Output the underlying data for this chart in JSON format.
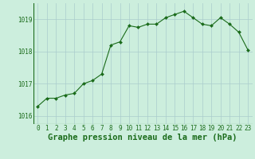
{
  "x": [
    0,
    1,
    2,
    3,
    4,
    5,
    6,
    7,
    8,
    9,
    10,
    11,
    12,
    13,
    14,
    15,
    16,
    17,
    18,
    19,
    20,
    21,
    22,
    23
  ],
  "y": [
    1016.3,
    1016.55,
    1016.55,
    1016.65,
    1016.7,
    1017.0,
    1017.1,
    1017.3,
    1018.2,
    1018.3,
    1018.8,
    1018.75,
    1018.85,
    1018.85,
    1019.05,
    1019.15,
    1019.25,
    1019.05,
    1018.85,
    1018.8,
    1019.05,
    1018.85,
    1018.6,
    1018.05
  ],
  "line_color": "#1a6b1a",
  "marker_color": "#1a6b1a",
  "bg_color": "#cceedd",
  "grid_color": "#aacccc",
  "xlabel": "Graphe pression niveau de la mer (hPa)",
  "xlabel_color": "#1a6b1a",
  "ylim": [
    1015.75,
    1019.5
  ],
  "yticks": [
    1016,
    1017,
    1018,
    1019
  ],
  "xticks": [
    0,
    1,
    2,
    3,
    4,
    5,
    6,
    7,
    8,
    9,
    10,
    11,
    12,
    13,
    14,
    15,
    16,
    17,
    18,
    19,
    20,
    21,
    22,
    23
  ],
  "tick_color": "#1a6b1a",
  "tick_fontsize": 5.5,
  "xlabel_fontsize": 7.5
}
